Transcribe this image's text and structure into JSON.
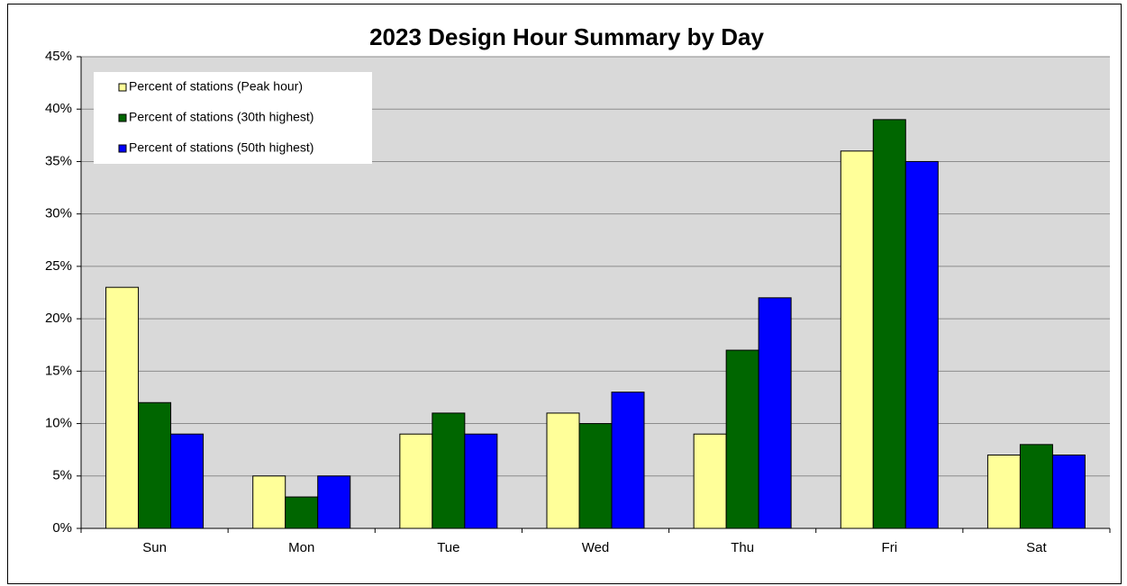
{
  "chart_data": {
    "type": "bar",
    "title": "2023 Design Hour Summary by Day",
    "categories": [
      "Sun",
      "Mon",
      "Tue",
      "Wed",
      "Thu",
      "Fri",
      "Sat"
    ],
    "series": [
      {
        "name": "Percent of stations (Peak hour)",
        "color": "#ffff99",
        "values": [
          23,
          5,
          9,
          11,
          9,
          36,
          7
        ]
      },
      {
        "name": "Percent of stations (30th highest)",
        "color": "#006600",
        "values": [
          12,
          3,
          11,
          10,
          17,
          39,
          8
        ]
      },
      {
        "name": "Percent of stations (50th highest)",
        "color": "#0000ff",
        "values": [
          9,
          5,
          9,
          13,
          22,
          35,
          7
        ]
      }
    ],
    "ylim": [
      0,
      45
    ],
    "yticks": [
      {
        "value": 0,
        "label": "0%"
      },
      {
        "value": 5,
        "label": "5%"
      },
      {
        "value": 10,
        "label": "10%"
      },
      {
        "value": 15,
        "label": "15%"
      },
      {
        "value": 20,
        "label": "20%"
      },
      {
        "value": 25,
        "label": "25%"
      },
      {
        "value": 30,
        "label": "30%"
      },
      {
        "value": 35,
        "label": "35%"
      },
      {
        "value": 40,
        "label": "40%"
      },
      {
        "value": 45,
        "label": "45%"
      }
    ],
    "grid": true,
    "legend": "top-left"
  }
}
